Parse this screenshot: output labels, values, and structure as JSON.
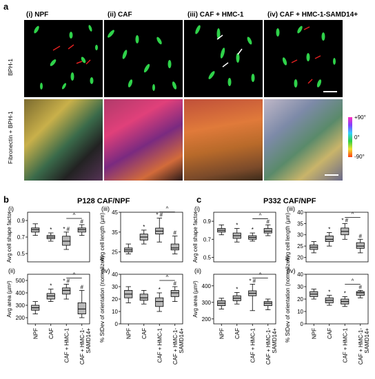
{
  "panel_a": {
    "letter": "a",
    "columns": [
      "(i) NPF",
      "(ii) CAF",
      "(iii) CAF + HMC-1",
      "(iv) CAF + HMC-1-SAMD14+"
    ],
    "row_labels": [
      "BPH-1",
      "Fibronectin + BPH-1"
    ],
    "colorbar": {
      "top": "+90°",
      "mid": "0°",
      "bottom": "-90°"
    }
  },
  "panel_b": {
    "letter": "b",
    "title": "P128 CAF/NPF"
  },
  "panel_c": {
    "letter": "c",
    "title": "P332 CAF/NPF"
  },
  "x_categories": [
    "NPF",
    "CAF",
    "CAF + HMC-1",
    "CAF + HMC-1-SAMD14+"
  ],
  "chart_data": [
    {
      "id": "b-i",
      "type": "box",
      "roman": "(i)",
      "ylabel": "Avg cell shape factor",
      "ylim": [
        0.4,
        1.0
      ],
      "yticks": [
        0.5,
        0.7,
        0.9
      ],
      "boxes": [
        {
          "min": 0.72,
          "q1": 0.76,
          "med": 0.79,
          "q3": 0.81,
          "max": 0.86
        },
        {
          "min": 0.65,
          "q1": 0.68,
          "med": 0.7,
          "q3": 0.72,
          "max": 0.75
        },
        {
          "min": 0.55,
          "q1": 0.6,
          "med": 0.65,
          "q3": 0.71,
          "max": 0.76
        },
        {
          "min": 0.72,
          "q1": 0.76,
          "med": 0.79,
          "q3": 0.81,
          "max": 0.85
        }
      ],
      "marks": [
        "",
        "*",
        "* #",
        "#"
      ],
      "bracket": [
        2,
        3
      ],
      "bracket_symbol": "^"
    },
    {
      "id": "b-iii",
      "type": "box",
      "roman": "(iii)",
      "ylabel": "Avg cell length (µm)",
      "ylim": [
        20,
        45
      ],
      "yticks": [
        25,
        35,
        45
      ],
      "boxes": [
        {
          "min": 24,
          "q1": 25,
          "med": 26,
          "q3": 27,
          "max": 29
        },
        {
          "min": 29,
          "q1": 31,
          "med": 32.5,
          "q3": 34,
          "max": 36
        },
        {
          "min": 30,
          "q1": 34,
          "med": 35.5,
          "q3": 37,
          "max": 42
        },
        {
          "min": 24,
          "q1": 26,
          "med": 27,
          "q3": 29,
          "max": 33
        }
      ],
      "marks": [
        "",
        "*",
        "* #",
        "#"
      ],
      "bracket": [
        2,
        3
      ],
      "bracket_symbol": "^"
    },
    {
      "id": "b-ii",
      "type": "box",
      "roman": "(ii)",
      "ylabel": "Avg area (µm²)",
      "ylim": [
        150,
        550
      ],
      "yticks": [
        200,
        300,
        400,
        500
      ],
      "boxes": [
        {
          "min": 230,
          "q1": 260,
          "med": 280,
          "q3": 300,
          "max": 330
        },
        {
          "min": 330,
          "q1": 350,
          "med": 375,
          "q3": 395,
          "max": 430
        },
        {
          "min": 350,
          "q1": 390,
          "med": 420,
          "q3": 440,
          "max": 470
        },
        {
          "min": 200,
          "q1": 230,
          "med": 270,
          "q3": 320,
          "max": 420
        }
      ],
      "marks": [
        "",
        "*",
        "* #",
        "#"
      ],
      "bracket": [
        2,
        3
      ],
      "bracket_symbol": "^"
    },
    {
      "id": "b-iv",
      "type": "box",
      "roman": "(iv)",
      "ylabel": "% StDev of orientation (normalized)",
      "ylim": [
        0,
        40
      ],
      "yticks": [
        0,
        10,
        20,
        30,
        40
      ],
      "boxes": [
        {
          "min": 17,
          "q1": 21,
          "med": 24,
          "q3": 27,
          "max": 30
        },
        {
          "min": 16,
          "q1": 19,
          "med": 21,
          "q3": 24,
          "max": 27
        },
        {
          "min": 10,
          "q1": 14,
          "med": 18,
          "q3": 21,
          "max": 25
        },
        {
          "min": 18,
          "q1": 22,
          "med": 25,
          "q3": 27,
          "max": 30
        }
      ],
      "marks": [
        "",
        "",
        "*",
        "#"
      ],
      "bracket": [
        2,
        3
      ],
      "bracket_symbol": "^"
    },
    {
      "id": "c-i",
      "type": "box",
      "roman": "(i)",
      "ylabel": "Avg cell shape factor",
      "ylim": [
        0.45,
        1.0
      ],
      "yticks": [
        0.5,
        0.7,
        0.9
      ],
      "boxes": [
        {
          "min": 0.75,
          "q1": 0.78,
          "med": 0.8,
          "q3": 0.82,
          "max": 0.86
        },
        {
          "min": 0.67,
          "q1": 0.71,
          "med": 0.74,
          "q3": 0.77,
          "max": 0.82
        },
        {
          "min": 0.68,
          "q1": 0.7,
          "med": 0.72,
          "q3": 0.74,
          "max": 0.77
        },
        {
          "min": 0.74,
          "q1": 0.77,
          "med": 0.79,
          "q3": 0.82,
          "max": 0.86
        }
      ],
      "marks": [
        "",
        "*",
        "*",
        "#"
      ],
      "bracket": [
        2,
        3
      ],
      "bracket_symbol": "^"
    },
    {
      "id": "c-iii",
      "type": "box",
      "roman": "(iii)",
      "ylabel": "Avg cell length (µm)",
      "ylim": [
        18,
        40
      ],
      "yticks": [
        20,
        25,
        30,
        35,
        40
      ],
      "boxes": [
        {
          "min": 22,
          "q1": 23.5,
          "med": 24.5,
          "q3": 25.5,
          "max": 27
        },
        {
          "min": 25,
          "q1": 27,
          "med": 28,
          "q3": 29.5,
          "max": 31
        },
        {
          "min": 28,
          "q1": 30,
          "med": 31.5,
          "q3": 33,
          "max": 35
        },
        {
          "min": 22,
          "q1": 24,
          "med": 25,
          "q3": 26.5,
          "max": 28
        }
      ],
      "marks": [
        "",
        "*",
        "* #",
        "#"
      ],
      "bracket": [
        2,
        3
      ],
      "bracket_symbol": "^"
    },
    {
      "id": "c-ii",
      "type": "box",
      "roman": "(ii)",
      "ylabel": "Avg area (µm²)",
      "ylim": [
        170,
        470
      ],
      "yticks": [
        200,
        300,
        400
      ],
      "boxes": [
        {
          "min": 260,
          "q1": 280,
          "med": 295,
          "q3": 310,
          "max": 325
        },
        {
          "min": 290,
          "q1": 310,
          "med": 325,
          "q3": 340,
          "max": 360
        },
        {
          "min": 250,
          "q1": 340,
          "med": 355,
          "q3": 370,
          "max": 410
        },
        {
          "min": 255,
          "q1": 280,
          "med": 295,
          "q3": 305,
          "max": 320
        }
      ],
      "marks": [
        "",
        "*",
        "* #",
        ""
      ],
      "bracket": [
        2,
        3
      ],
      "bracket_symbol": "^"
    },
    {
      "id": "c-iv",
      "type": "box",
      "roman": "(iv)",
      "ylabel": "% StDev of orientation (normalized)",
      "ylim": [
        0,
        40
      ],
      "yticks": [
        0,
        10,
        20,
        30,
        40
      ],
      "boxes": [
        {
          "min": 20,
          "q1": 22,
          "med": 24,
          "q3": 26,
          "max": 28
        },
        {
          "min": 15,
          "q1": 17,
          "med": 19,
          "q3": 21,
          "max": 23
        },
        {
          "min": 14,
          "q1": 16,
          "med": 18,
          "q3": 20,
          "max": 22
        },
        {
          "min": 21,
          "q1": 23,
          "med": 25,
          "q3": 26,
          "max": 27
        }
      ],
      "marks": [
        "",
        "*",
        "*",
        "#"
      ],
      "bracket": [
        2,
        3
      ],
      "bracket_symbol": "^"
    }
  ]
}
